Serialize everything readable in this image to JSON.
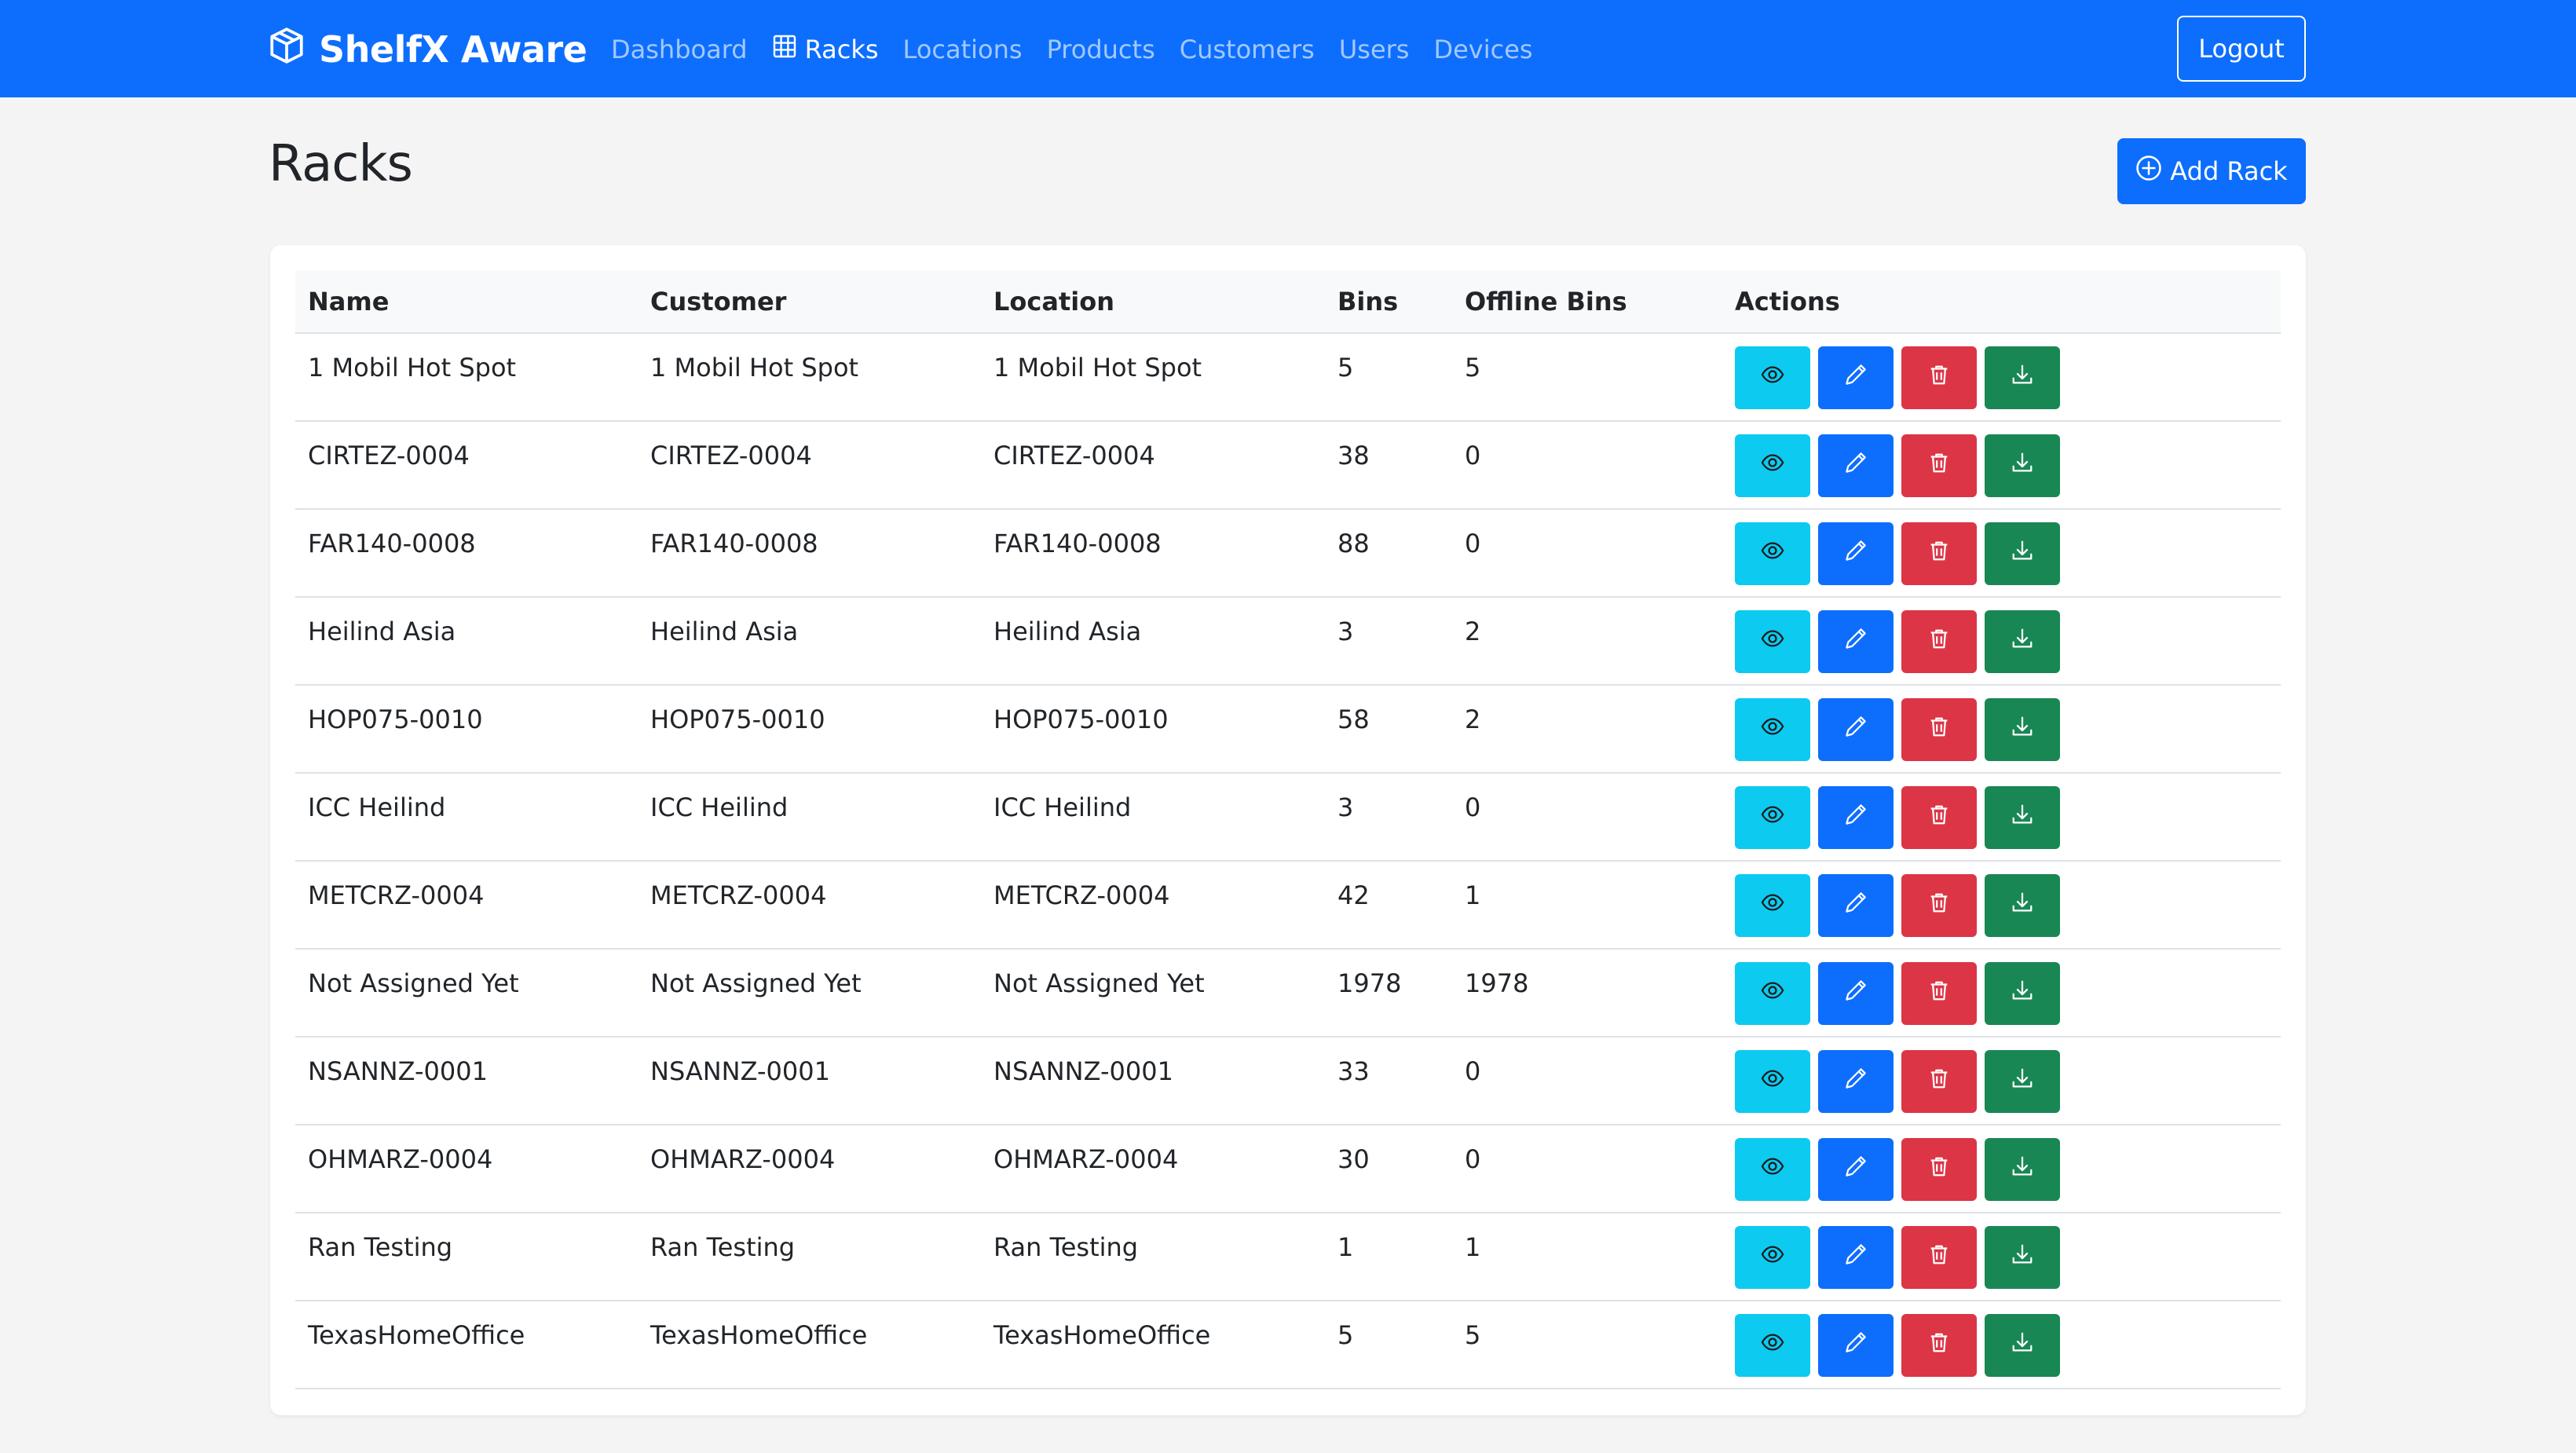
{
  "app": {
    "brand": "ShelfX Aware"
  },
  "nav": {
    "items": [
      {
        "label": "Dashboard",
        "active": false
      },
      {
        "label": "Racks",
        "active": true
      },
      {
        "label": "Locations",
        "active": false
      },
      {
        "label": "Products",
        "active": false
      },
      {
        "label": "Customers",
        "active": false
      },
      {
        "label": "Users",
        "active": false
      },
      {
        "label": "Devices",
        "active": false
      }
    ],
    "logout_label": "Logout"
  },
  "page": {
    "title": "Racks",
    "add_label": "Add Rack"
  },
  "table": {
    "headers": [
      "Name",
      "Customer",
      "Location",
      "Bins",
      "Offline Bins",
      "Actions"
    ],
    "rows": [
      {
        "name": "1 Mobil Hot Spot",
        "customer": "1 Mobil Hot Spot",
        "location": "1 Mobil Hot Spot",
        "bins": "5",
        "offline": "5"
      },
      {
        "name": "CIRTEZ-0004",
        "customer": "CIRTEZ-0004",
        "location": "CIRTEZ-0004",
        "bins": "38",
        "offline": "0"
      },
      {
        "name": "FAR140-0008",
        "customer": "FAR140-0008",
        "location": "FAR140-0008",
        "bins": "88",
        "offline": "0"
      },
      {
        "name": "Heilind Asia",
        "customer": "Heilind Asia",
        "location": "Heilind Asia",
        "bins": "3",
        "offline": "2"
      },
      {
        "name": "HOP075-0010",
        "customer": "HOP075-0010",
        "location": "HOP075-0010",
        "bins": "58",
        "offline": "2"
      },
      {
        "name": "ICC Heilind",
        "customer": "ICC Heilind",
        "location": "ICC Heilind",
        "bins": "3",
        "offline": "0"
      },
      {
        "name": "METCRZ-0004",
        "customer": "METCRZ-0004",
        "location": "METCRZ-0004",
        "bins": "42",
        "offline": "1"
      },
      {
        "name": "Not Assigned Yet",
        "customer": "Not Assigned Yet",
        "location": "Not Assigned Yet",
        "bins": "1978",
        "offline": "1978"
      },
      {
        "name": "NSANNZ-0001",
        "customer": "NSANNZ-0001",
        "location": "NSANNZ-0001",
        "bins": "33",
        "offline": "0"
      },
      {
        "name": "OHMARZ-0004",
        "customer": "OHMARZ-0004",
        "location": "OHMARZ-0004",
        "bins": "30",
        "offline": "0"
      },
      {
        "name": "Ran Testing",
        "customer": "Ran Testing",
        "location": "Ran Testing",
        "bins": "1",
        "offline": "1"
      },
      {
        "name": "TexasHomeOffice",
        "customer": "TexasHomeOffice",
        "location": "TexasHomeOffice",
        "bins": "5",
        "offline": "5"
      }
    ]
  },
  "icons": {
    "brand": "box-icon",
    "racks_nav": "grid-icon",
    "add": "plus-circle-icon",
    "view": "eye-icon",
    "edit": "pencil-icon",
    "delete": "trash-icon",
    "download": "download-icon"
  },
  "colors": {
    "primary": "#0d6efd",
    "info": "#0dcaf0",
    "danger": "#dc3545",
    "success": "#198754",
    "background": "#f4f4f5"
  }
}
